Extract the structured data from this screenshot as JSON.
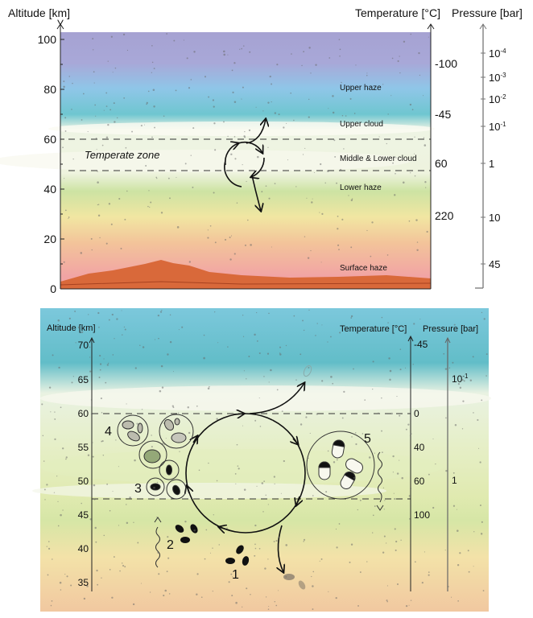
{
  "top": {
    "altitude_title": "Altitude [km]",
    "temperature_title": "Temperature [°C]",
    "pressure_title": "Pressure [bar]",
    "altitude_ticks": [
      "100",
      "80",
      "60",
      "40",
      "20",
      "0"
    ],
    "temperature_ticks": [
      "-100",
      "-45",
      "60",
      "220"
    ],
    "pressure_ticks": [
      {
        "base": "10",
        "exp": "-4"
      },
      {
        "base": "10",
        "exp": "-3"
      },
      {
        "base": "10",
        "exp": "-2"
      },
      {
        "base": "10",
        "exp": "-1"
      },
      {
        "base": "1",
        "exp": ""
      },
      {
        "base": "10",
        "exp": ""
      },
      {
        "base": "45",
        "exp": ""
      }
    ],
    "layers": [
      "Upper haze",
      "Upper cloud",
      "Middle & Lower cloud",
      "Lower haze",
      "Surface haze"
    ],
    "zone_label": "Temperate zone"
  },
  "bottom": {
    "altitude_title": "Altitude [km]",
    "temperature_title": "Temperature [°C]",
    "pressure_title": "Pressure [bar]",
    "altitude_ticks": [
      "70",
      "65",
      "60",
      "55",
      "50",
      "45",
      "40",
      "35"
    ],
    "temperature_ticks": [
      "-45",
      "0",
      "40",
      "60",
      "100"
    ],
    "pressure_ticks": [
      {
        "base": "10",
        "exp": "-1"
      },
      {
        "base": "1",
        "exp": ""
      }
    ],
    "stage_labels": [
      "1",
      "2",
      "3",
      "4",
      "5"
    ]
  }
}
